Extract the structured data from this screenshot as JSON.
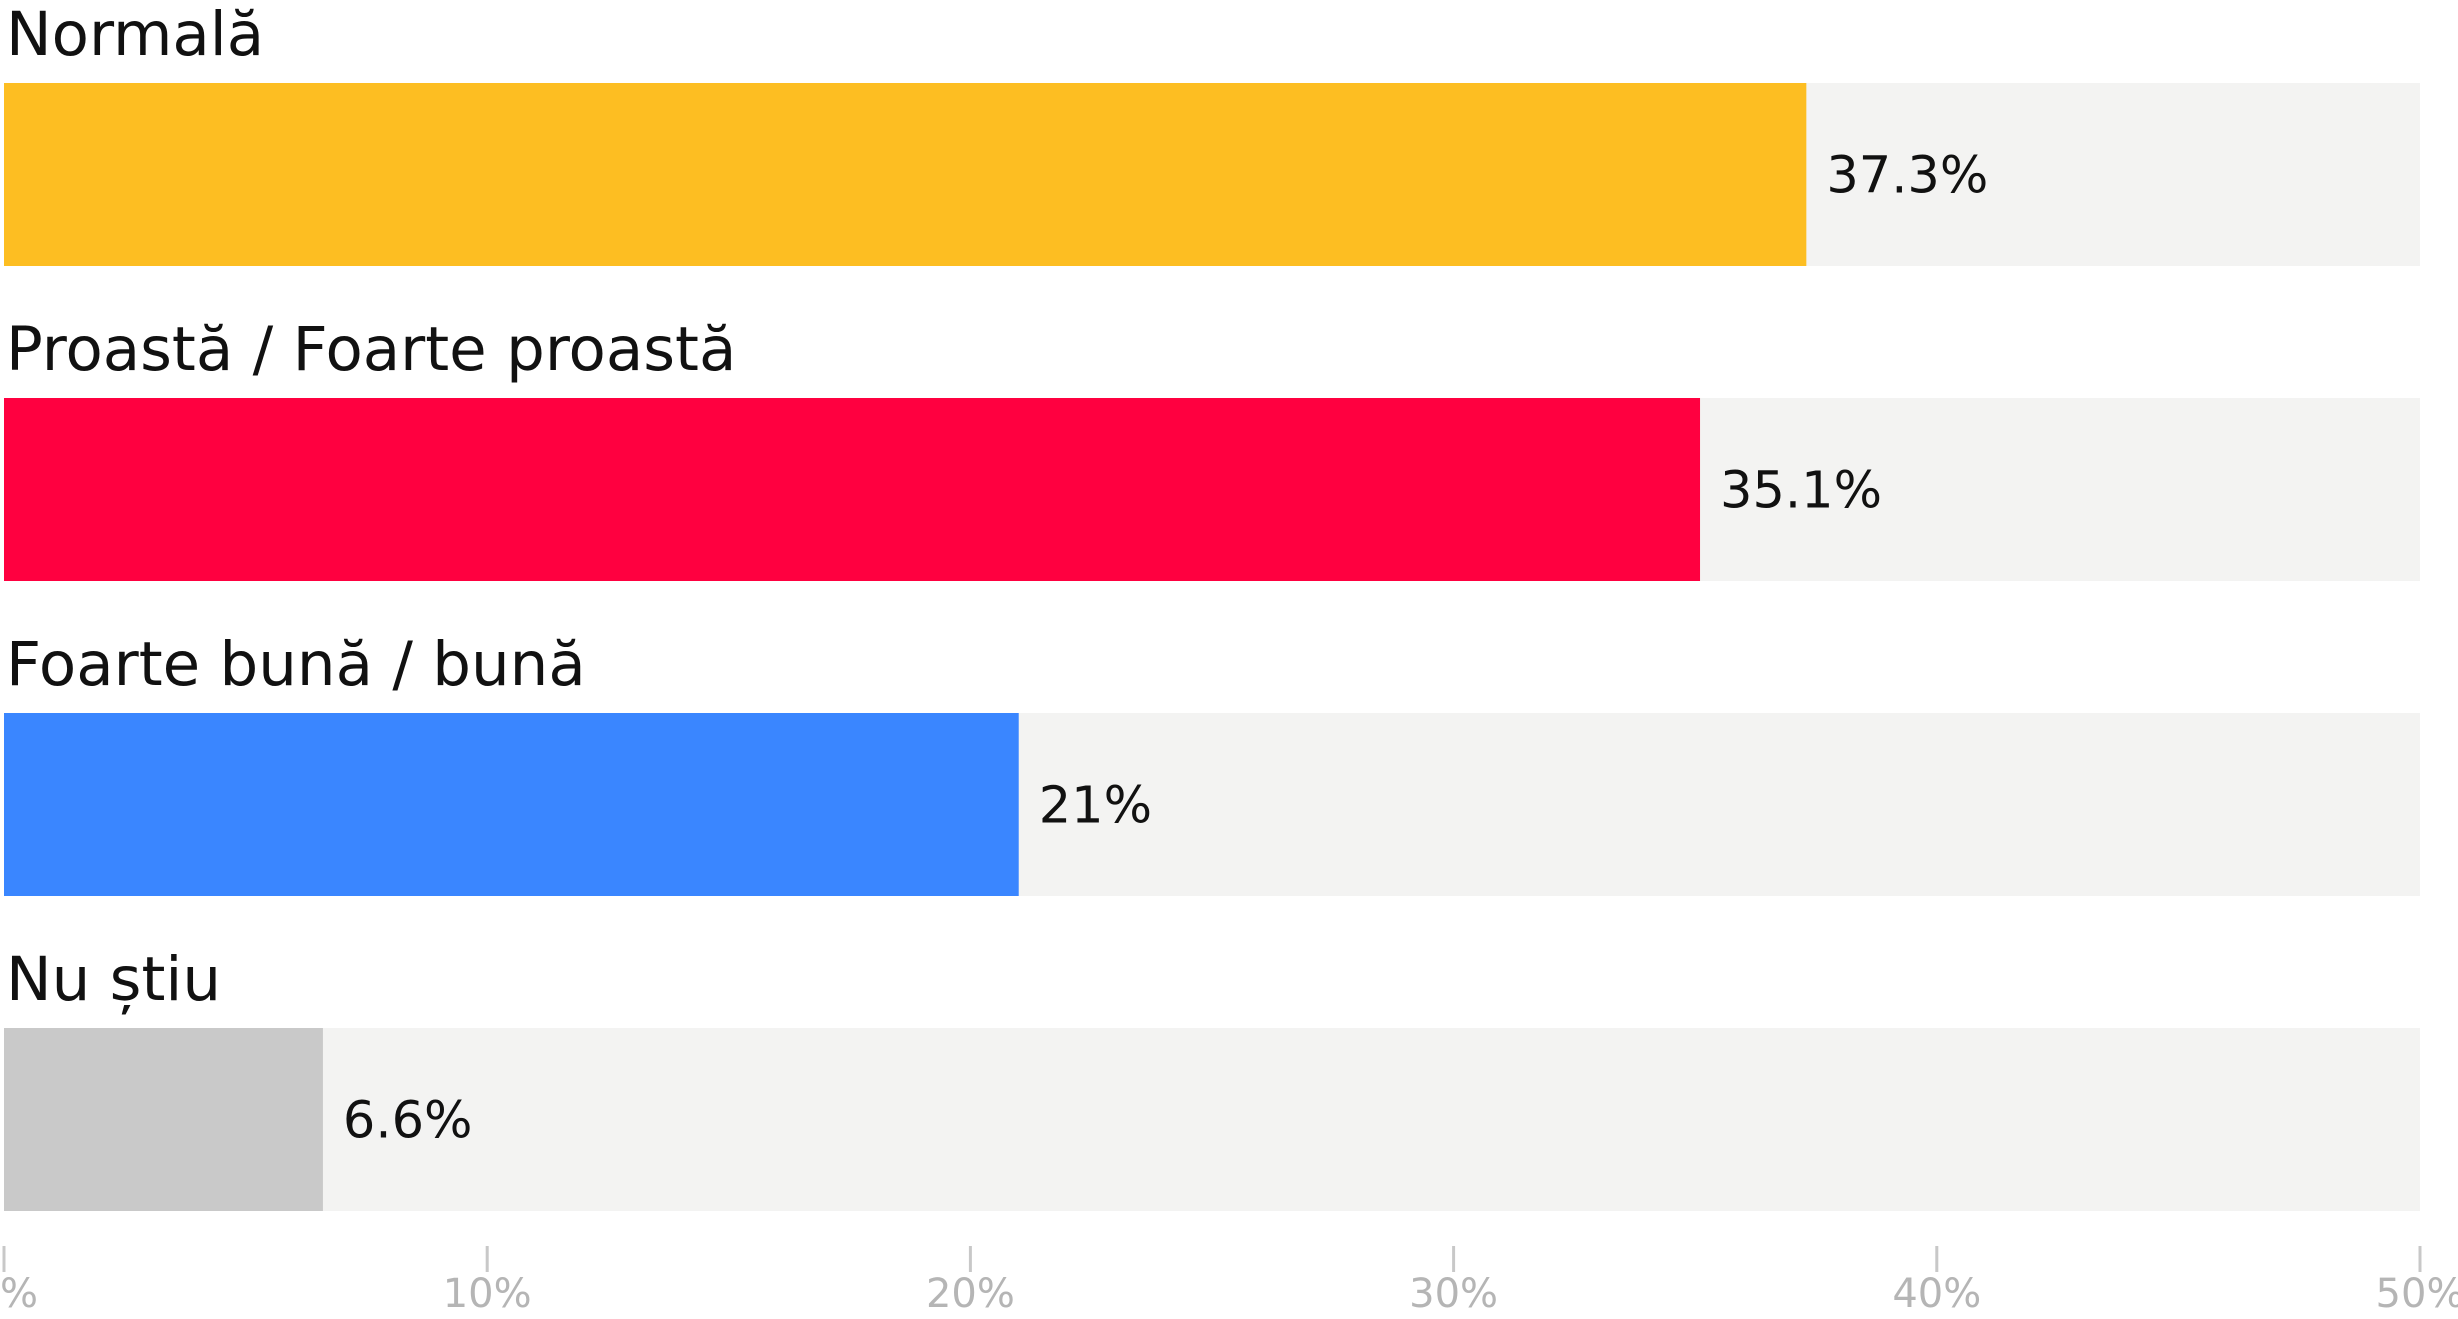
{
  "chart_data": {
    "type": "bar",
    "orientation": "horizontal",
    "categories": [
      "Normală",
      "Proastă / Foarte proastă",
      "Foarte bună / bună",
      "Nu știu"
    ],
    "values": [
      37.3,
      35.1,
      21,
      6.6
    ],
    "value_labels": [
      "37.3%",
      "35.1%",
      "21%",
      "6.6%"
    ],
    "colors": [
      "#FDBE22",
      "#FF0040",
      "#3A86FF",
      "#C9C9C9"
    ],
    "track_color": "#F3F3F2",
    "xlim": [
      0,
      50
    ],
    "ticks": [
      0,
      10,
      20,
      30,
      40,
      50
    ],
    "tick_labels": [
      "%",
      "10%",
      "20%",
      "30%",
      "40%",
      "50%"
    ],
    "legend": "none",
    "grid": false
  }
}
